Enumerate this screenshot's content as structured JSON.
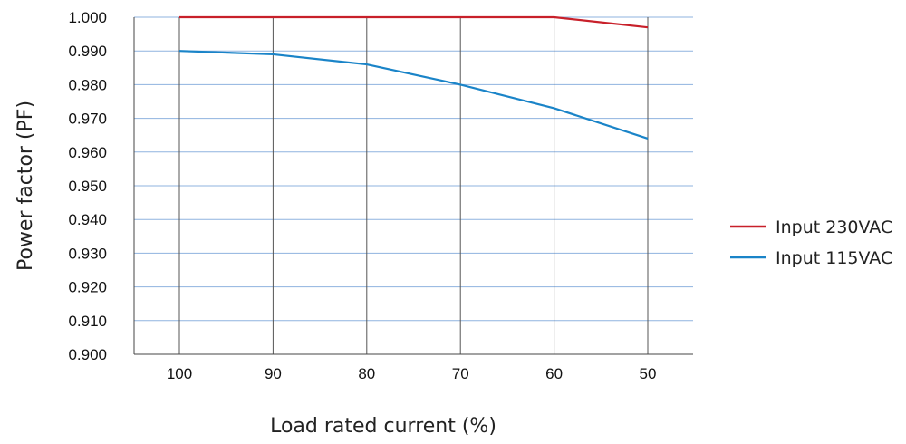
{
  "chart_data": {
    "type": "line",
    "title": "",
    "xlabel": "Load rated current (%)",
    "ylabel": "Power factor (PF)",
    "categories": [
      "100",
      "90",
      "80",
      "70",
      "60",
      "50"
    ],
    "ylim": [
      0.9,
      1.0
    ],
    "yticks": [
      "0.900",
      "0.910",
      "0.920",
      "0.930",
      "0.940",
      "0.950",
      "0.960",
      "0.970",
      "0.980",
      "0.990",
      "1.000"
    ],
    "grid": true,
    "legend_position": "right",
    "series": [
      {
        "name": "Input 230VAC",
        "color": "#c8202a",
        "values": [
          1.0,
          1.0,
          1.0,
          1.0,
          1.0,
          0.997
        ]
      },
      {
        "name": "Input 115VAC",
        "color": "#1a84c8",
        "values": [
          0.99,
          0.989,
          0.986,
          0.98,
          0.973,
          0.964
        ]
      }
    ]
  }
}
